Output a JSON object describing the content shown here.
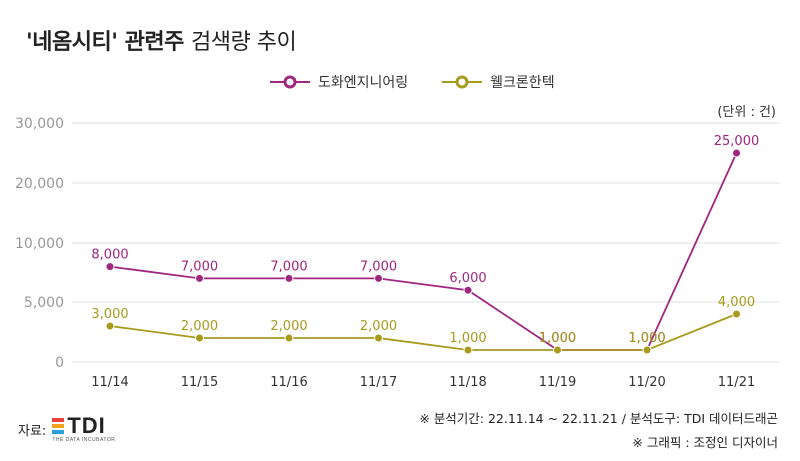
{
  "header": {
    "title_bold": "'네옴시티' 관련주",
    "title_light": "검색량 추이"
  },
  "unit_label": "(단위 : 건)",
  "source": {
    "label": "자료:",
    "logo_text": "TDI",
    "logo_subtext": "THE DATA INCUBATOR"
  },
  "notes": {
    "period": "※ 분석기간: 22.11.14 ~ 22.11.21 / 분석도구: TDI 데이터드래곤",
    "credit": "※ 그래픽 : 조정인 디자이너"
  },
  "colors": {
    "series1": "#a0267f",
    "series2": "#a89a1c",
    "grid": "#e2e2e2",
    "axis_text": "#999999"
  },
  "chart_data": {
    "type": "line",
    "categories": [
      "11/14",
      "11/15",
      "11/16",
      "11/17",
      "11/18",
      "11/19",
      "11/20",
      "11/21"
    ],
    "series": [
      {
        "name": "도화엔지니어링",
        "values": [
          8000,
          7000,
          7000,
          7000,
          6000,
          1000,
          1000,
          25000
        ],
        "labels": [
          "8,000",
          "7,000",
          "7,000",
          "7,000",
          "6,000",
          "1,000",
          "1,000",
          "25,000"
        ]
      },
      {
        "name": "웰크론한텍",
        "values": [
          3000,
          2000,
          2000,
          2000,
          1000,
          1000,
          1000,
          4000
        ],
        "labels": [
          "3,000",
          "2,000",
          "2,000",
          "2,000",
          "1,000",
          "1,000",
          "1,000",
          "4,000"
        ]
      }
    ],
    "yticks": [
      "0",
      "5,000",
      "10,000",
      "20,000",
      "30,000"
    ],
    "grid": true,
    "legend_position": "top-center"
  }
}
